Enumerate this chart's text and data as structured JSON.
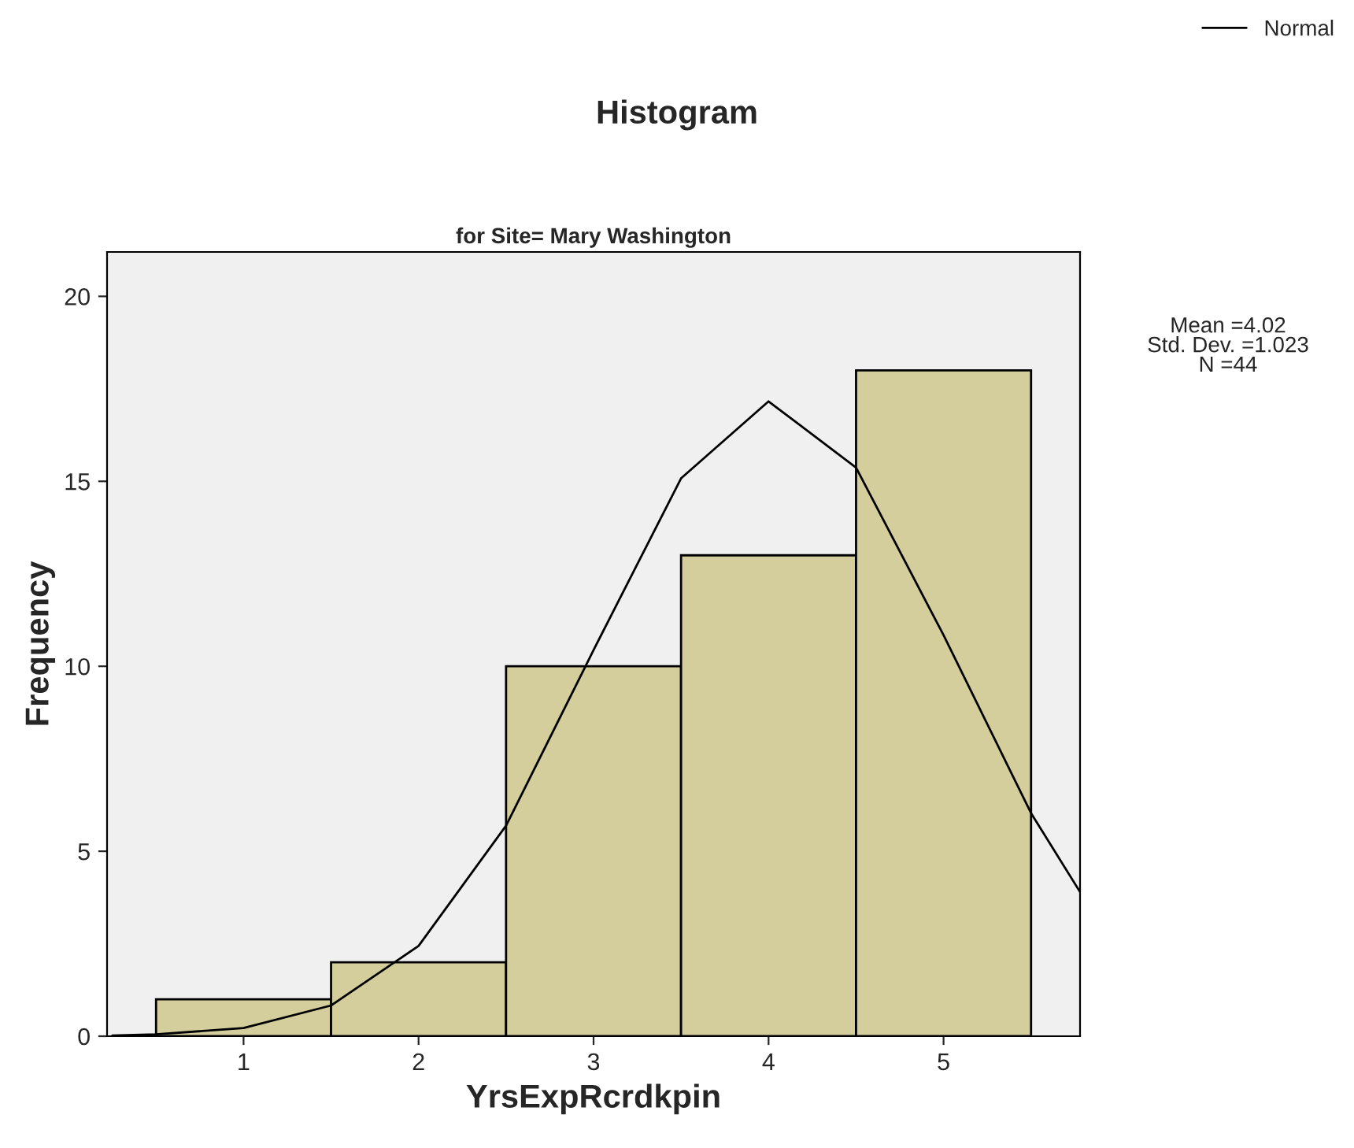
{
  "chart_data": {
    "type": "histogram",
    "title": "Histogram",
    "subtitle": "for Site= Mary Washington",
    "xlabel": "YrsExpRcrdkpin",
    "ylabel": "Frequency",
    "bins": [
      0.5,
      1.5,
      2.5,
      3.5,
      4.5,
      5.5
    ],
    "values": [
      1,
      2,
      10,
      13,
      18
    ],
    "color": "#d3ce9c",
    "series": [
      {
        "name": "Normal",
        "type": "line",
        "color": "#000000",
        "x": [
          0.25,
          0.5,
          1,
          1.5,
          2,
          2.5,
          3,
          3.5,
          4,
          4.5,
          5,
          5.5,
          5.78
        ],
        "values": [
          0.02,
          0.05,
          0.22,
          0.83,
          2.44,
          5.69,
          10.44,
          15.08,
          17.16,
          15.37,
          10.84,
          6.03,
          3.9
        ]
      }
    ],
    "xlim": [
      0.22,
      5.78
    ],
    "ylim": [
      0,
      21.2
    ],
    "xticks": [
      1,
      2,
      3,
      4,
      5
    ],
    "yticks": [
      0,
      5,
      10,
      15,
      20
    ],
    "annotations": [
      "Mean =4.02\nStd. Dev. =1.023\nN =44"
    ],
    "legend": "top right",
    "grid": false
  }
}
